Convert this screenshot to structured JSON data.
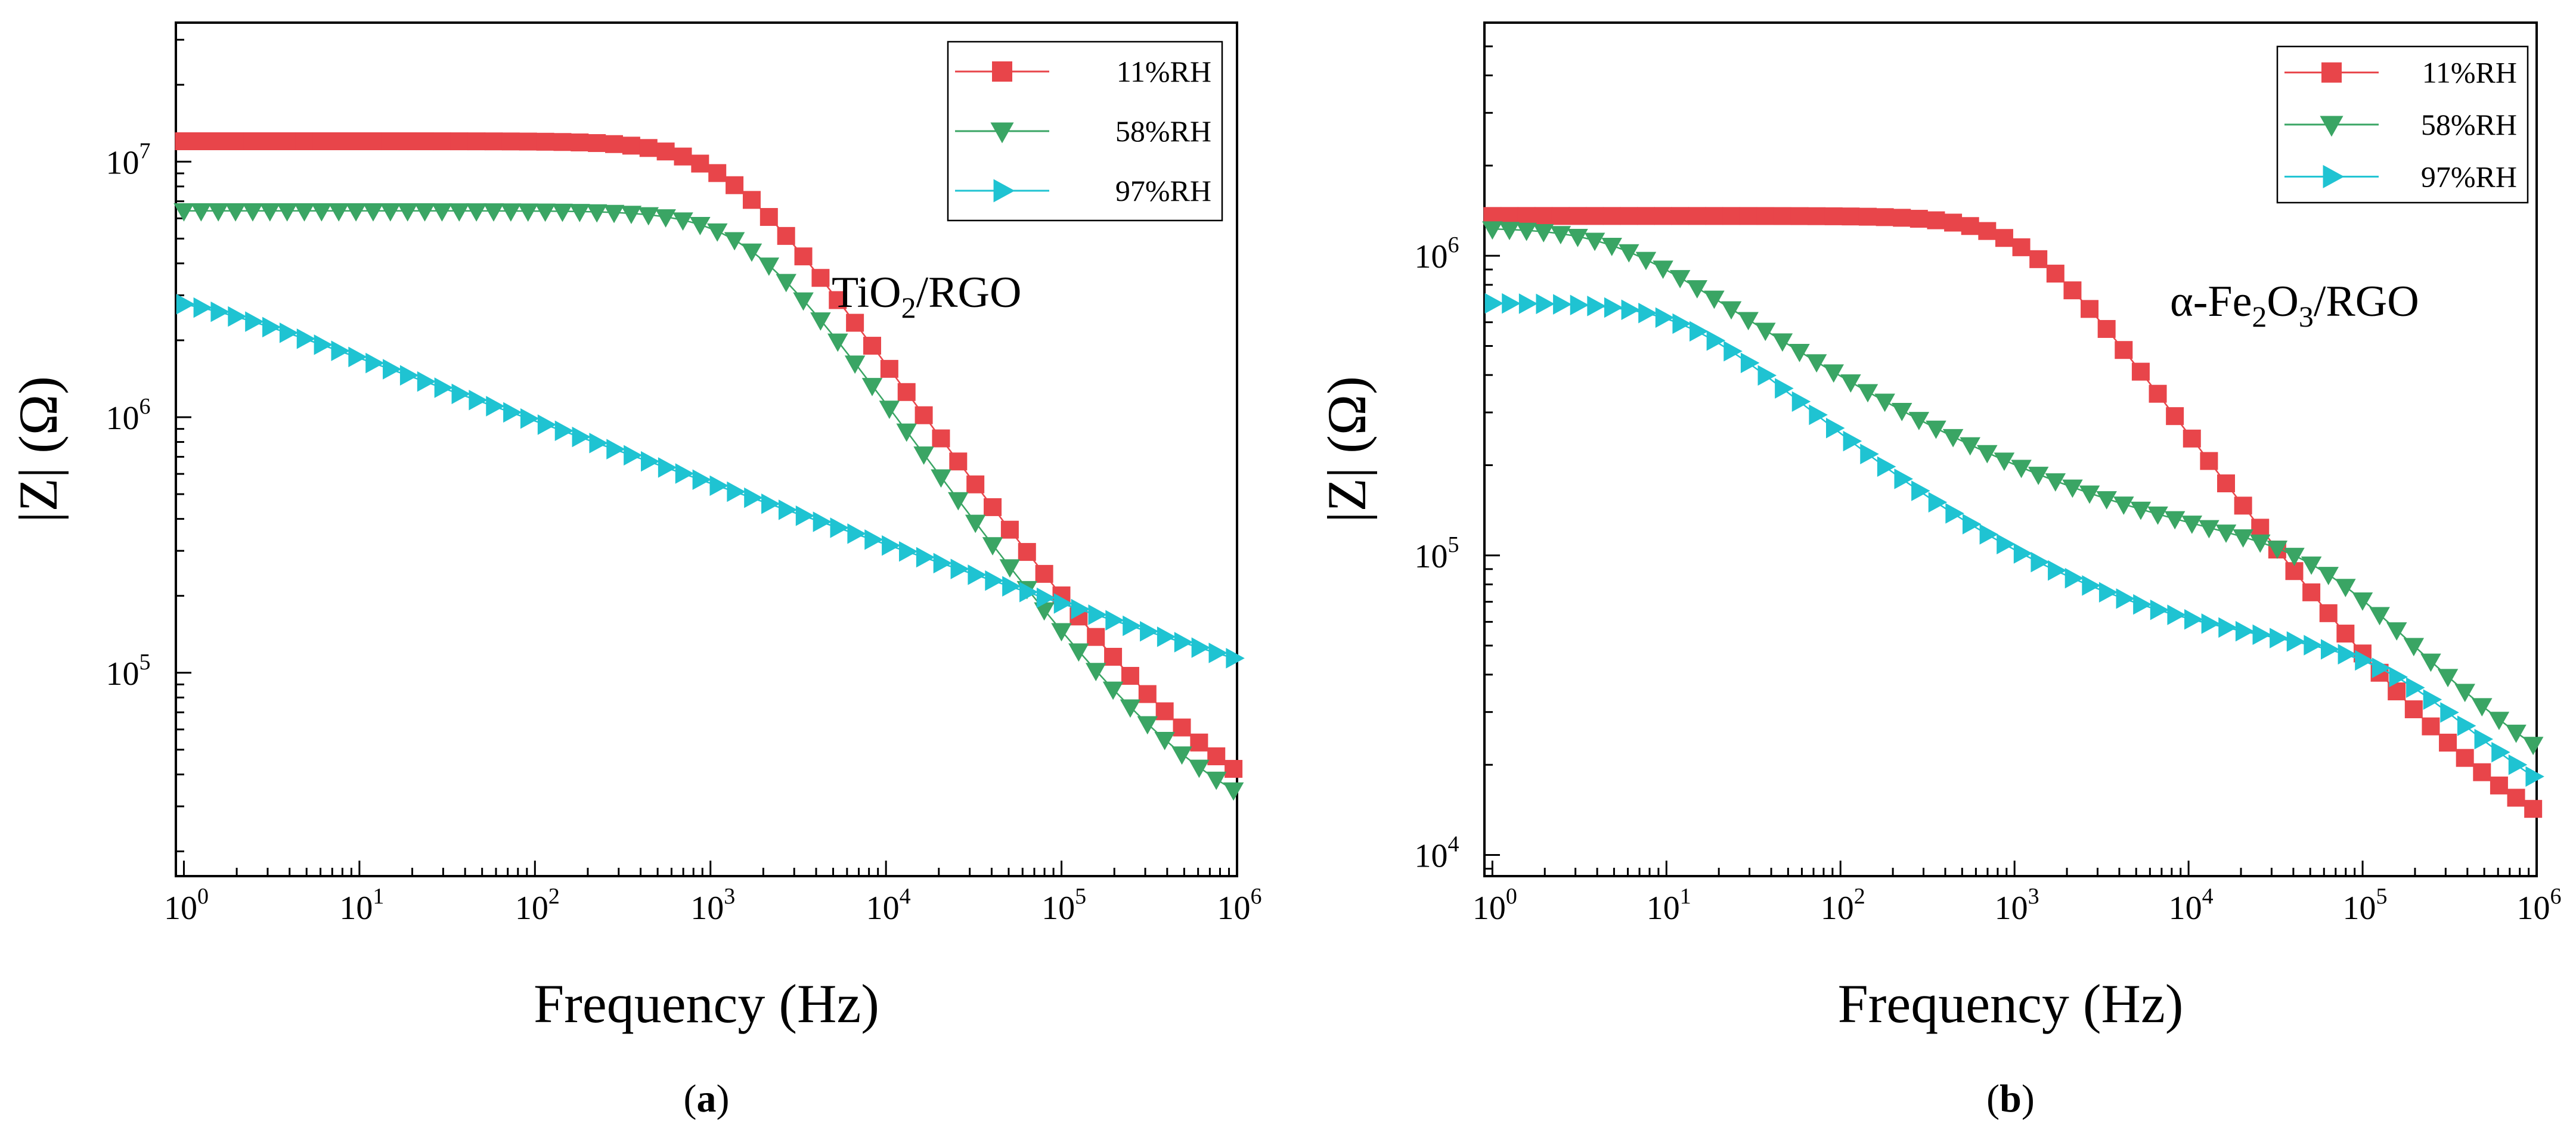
{
  "chart_data": [
    {
      "type": "line",
      "panel": "a",
      "caption_label": "a",
      "annotation": {
        "main": "TiO",
        "sub": "2",
        "rest": "/RGO"
      },
      "xlabel": "Frequency (Hz)",
      "ylabel": "|Z| (Ω)",
      "xscale": "log",
      "yscale": "log",
      "xlim": [
        0.9,
        1000000
      ],
      "ylim": [
        16000,
        35000000
      ],
      "x_ticks": [
        {
          "value": 1,
          "base": "10",
          "exp": "0"
        },
        {
          "value": 10,
          "base": "10",
          "exp": "1"
        },
        {
          "value": 100,
          "base": "10",
          "exp": "2"
        },
        {
          "value": 1000,
          "base": "10",
          "exp": "3"
        },
        {
          "value": 10000,
          "base": "10",
          "exp": "4"
        },
        {
          "value": 100000,
          "base": "10",
          "exp": "5"
        },
        {
          "value": 1000000,
          "base": "10",
          "exp": "6"
        }
      ],
      "y_ticks": [
        {
          "value": 100000,
          "base": "10",
          "exp": "5"
        },
        {
          "value": 1000000,
          "base": "10",
          "exp": "6"
        },
        {
          "value": 10000000,
          "base": "10",
          "exp": "7"
        }
      ],
      "legend_position": "top-right",
      "series": [
        {
          "name": "11%RH",
          "color": "#e8454a",
          "marker": "square",
          "low_value": 12000000,
          "low_corner": 1200,
          "low_slope": 0.95,
          "mid_value": 0,
          "mid_corner": 100000,
          "mid_slope": 0.8,
          "floor": 21000
        },
        {
          "name": "58%RH",
          "color": "#3aa564",
          "marker": "triangle-down",
          "low_value": 6400000,
          "low_corner": 1600,
          "low_slope": 0.95,
          "mid_value": 0,
          "mid_corner": 100000,
          "mid_slope": 0.8,
          "floor": 20000
        },
        {
          "name": "97%RH",
          "color": "#1fc3d2",
          "marker": "triangle-right",
          "low_value": 3000000,
          "low_corner": 1,
          "low_slope": 0.25,
          "mid_value": 0,
          "mid_corner": 100000,
          "mid_slope": 0.8,
          "floor": 18000
        }
      ]
    },
    {
      "type": "line",
      "panel": "b",
      "caption_label": "b",
      "annotation": {
        "main": "α-Fe",
        "sub": "2",
        "mid": "O",
        "sub2": "3",
        "rest": "/RGO"
      },
      "xlabel": "Frequency (Hz)",
      "ylabel": "|Z| (Ω)",
      "xscale": "log",
      "yscale": "log",
      "xlim": [
        0.9,
        1000000
      ],
      "ylim": [
        8500,
        6000000
      ],
      "x_ticks": [
        {
          "value": 1,
          "base": "10",
          "exp": "0"
        },
        {
          "value": 10,
          "base": "10",
          "exp": "1"
        },
        {
          "value": 100,
          "base": "10",
          "exp": "2"
        },
        {
          "value": 1000,
          "base": "10",
          "exp": "3"
        },
        {
          "value": 10000,
          "base": "10",
          "exp": "4"
        },
        {
          "value": 100000,
          "base": "10",
          "exp": "5"
        },
        {
          "value": 1000000,
          "base": "10",
          "exp": "6"
        }
      ],
      "y_ticks": [
        {
          "value": 10000,
          "base": "10",
          "exp": "4"
        },
        {
          "value": 100000,
          "base": "10",
          "exp": "5"
        },
        {
          "value": 1000000,
          "base": "10",
          "exp": "6"
        }
      ],
      "legend_position": "top-right",
      "series": [
        {
          "name": "11%RH",
          "color": "#e8454a",
          "marker": "square",
          "low_value": 1350000,
          "low_corner": 1200,
          "low_slope": 0.8,
          "mid_value": 0,
          "mid_corner": 100000,
          "mid_slope": 0.8,
          "floor": 7800
        },
        {
          "name": "58%RH",
          "color": "#3aa564",
          "marker": "triangle-down",
          "low_value": 1150000,
          "low_corner": 5,
          "low_slope": 0.44,
          "mid_value": 80000,
          "mid_corner": 60000,
          "mid_slope": 0.8,
          "floor": 9200
        },
        {
          "name": "97%RH",
          "color": "#1fc3d2",
          "marker": "triangle-right",
          "low_value": 650000,
          "low_corner": 13,
          "low_slope": 0.55,
          "mid_value": 36000,
          "mid_corner": 150000,
          "mid_slope": 0.8,
          "floor": 8800
        }
      ]
    }
  ]
}
